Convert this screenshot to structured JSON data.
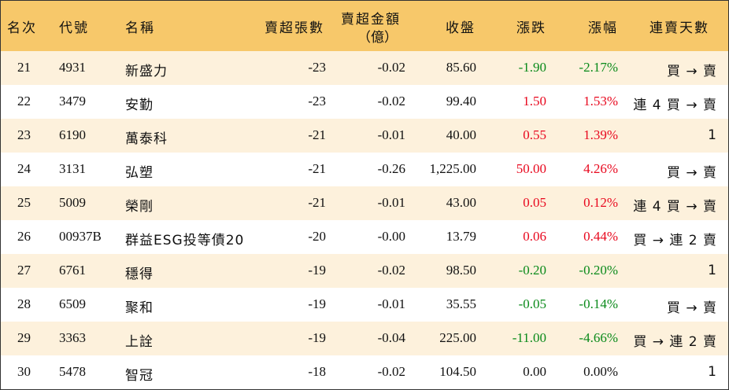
{
  "headers": {
    "rank": "名次",
    "code": "代號",
    "name": "名稱",
    "net_sell_lots": "賣超張數",
    "net_sell_amount_line1": "賣超金額",
    "net_sell_amount_line2": "（億）",
    "close": "收盤",
    "change": "漲跌",
    "pct": "漲幅",
    "streak": "連賣天數"
  },
  "colors": {
    "header_bg": "#f7c86a",
    "alt_row_bg": "#fdf1dc",
    "up": "#e8081e",
    "down": "#0a8a1a"
  },
  "rows": [
    {
      "rank": "21",
      "code": "4931",
      "name": "新盛力",
      "lots": "-23",
      "amount": "-0.02",
      "close": "85.60",
      "change": "-1.90",
      "pct": "-2.17%",
      "dir": "down",
      "streak": "買 → 賣"
    },
    {
      "rank": "22",
      "code": "3479",
      "name": "安勤",
      "lots": "-23",
      "amount": "-0.02",
      "close": "99.40",
      "change": "1.50",
      "pct": "1.53%",
      "dir": "up",
      "streak": "連 4 買 → 賣"
    },
    {
      "rank": "23",
      "code": "6190",
      "name": "萬泰科",
      "lots": "-21",
      "amount": "-0.01",
      "close": "40.00",
      "change": "0.55",
      "pct": "1.39%",
      "dir": "up",
      "streak": "1"
    },
    {
      "rank": "24",
      "code": "3131",
      "name": "弘塑",
      "lots": "-21",
      "amount": "-0.26",
      "close": "1,225.00",
      "change": "50.00",
      "pct": "4.26%",
      "dir": "up",
      "streak": "買 → 賣"
    },
    {
      "rank": "25",
      "code": "5009",
      "name": "榮剛",
      "lots": "-21",
      "amount": "-0.01",
      "close": "43.00",
      "change": "0.05",
      "pct": "0.12%",
      "dir": "up",
      "streak": "連 4 買 → 賣"
    },
    {
      "rank": "26",
      "code": "00937B",
      "name": "群益ESG投等債20",
      "lots": "-20",
      "amount": "-0.00",
      "close": "13.79",
      "change": "0.06",
      "pct": "0.44%",
      "dir": "up",
      "streak": "買 → 連 2 賣"
    },
    {
      "rank": "27",
      "code": "6761",
      "name": "穩得",
      "lots": "-19",
      "amount": "-0.02",
      "close": "98.50",
      "change": "-0.20",
      "pct": "-0.20%",
      "dir": "down",
      "streak": "1"
    },
    {
      "rank": "28",
      "code": "6509",
      "name": "聚和",
      "lots": "-19",
      "amount": "-0.01",
      "close": "35.55",
      "change": "-0.05",
      "pct": "-0.14%",
      "dir": "down",
      "streak": "買 → 賣"
    },
    {
      "rank": "29",
      "code": "3363",
      "name": "上詮",
      "lots": "-19",
      "amount": "-0.04",
      "close": "225.00",
      "change": "-11.00",
      "pct": "-4.66%",
      "dir": "down",
      "streak": "買 → 連 2 賣"
    },
    {
      "rank": "30",
      "code": "5478",
      "name": "智冠",
      "lots": "-18",
      "amount": "-0.02",
      "close": "104.50",
      "change": "0.00",
      "pct": "0.00%",
      "dir": "flat",
      "streak": "1"
    }
  ]
}
